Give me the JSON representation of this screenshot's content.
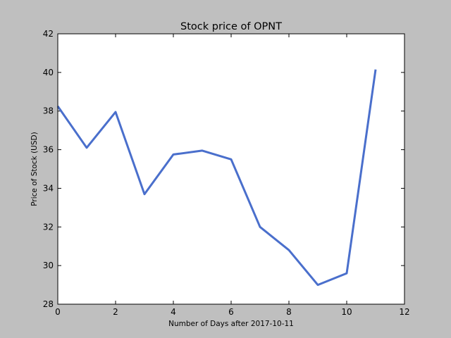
{
  "chart_data": {
    "type": "line",
    "title": "Stock price of OPNT",
    "xlabel": "Number of Days after 2017-10-11",
    "ylabel": "Price of Stock (USD)",
    "xlim": [
      0,
      12
    ],
    "ylim": [
      28,
      42
    ],
    "xticks": [
      "0",
      "2",
      "4",
      "6",
      "8",
      "10",
      "12"
    ],
    "yticks": [
      "28",
      "30",
      "32",
      "34",
      "36",
      "38",
      "40",
      "42"
    ],
    "grid": false,
    "legend": "none",
    "series": [
      {
        "color": "#4a6fcc",
        "x": [
          0,
          1,
          2,
          3,
          4,
          5,
          6,
          7,
          8,
          9,
          10,
          11
        ],
        "y": [
          38.25,
          36.1,
          37.95,
          33.7,
          35.75,
          35.95,
          35.5,
          32.0,
          30.8,
          29.0,
          29.6,
          40.15
        ]
      }
    ],
    "background_color": "#bfbfbf",
    "plot_background_color": "#ffffff"
  }
}
